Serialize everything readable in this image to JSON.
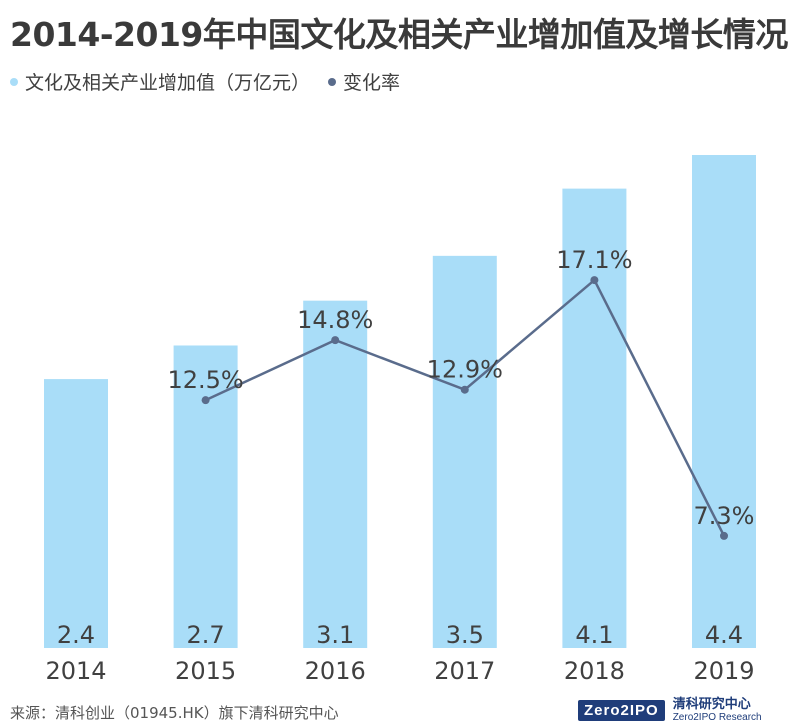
{
  "title": "2014-2019年中国文化及相关产业增加值及增长情况",
  "legend": {
    "bars_label": "文化及相关产业增加值（万亿元）",
    "line_label": "变化率"
  },
  "colors": {
    "bar": "#a9ddf8",
    "line": "#5a6c8c",
    "text": "#404040"
  },
  "chart_data": {
    "type": "bar",
    "categories": [
      "2014",
      "2015",
      "2016",
      "2017",
      "2018",
      "2019"
    ],
    "series": [
      {
        "name": "文化及相关产业增加值（万亿元）",
        "type": "bar",
        "values": [
          2.4,
          2.7,
          3.1,
          3.5,
          4.1,
          4.4
        ],
        "labels": [
          "2.4",
          "2.7",
          "3.1",
          "3.5",
          "4.1",
          "4.4"
        ]
      },
      {
        "name": "变化率",
        "type": "line",
        "values": [
          null,
          12.5,
          14.8,
          12.9,
          17.1,
          7.3
        ],
        "labels": [
          "",
          "12.5%",
          "14.8%",
          "12.9%",
          "17.1%",
          "7.3%"
        ]
      }
    ]
  },
  "footer": {
    "source": "来源：清科创业（01945.HK）旗下清科研究中心",
    "logo_badge": "Zero2IPO",
    "logo_cn": "清科研究中心",
    "logo_en": "Zero2IPO Research"
  }
}
